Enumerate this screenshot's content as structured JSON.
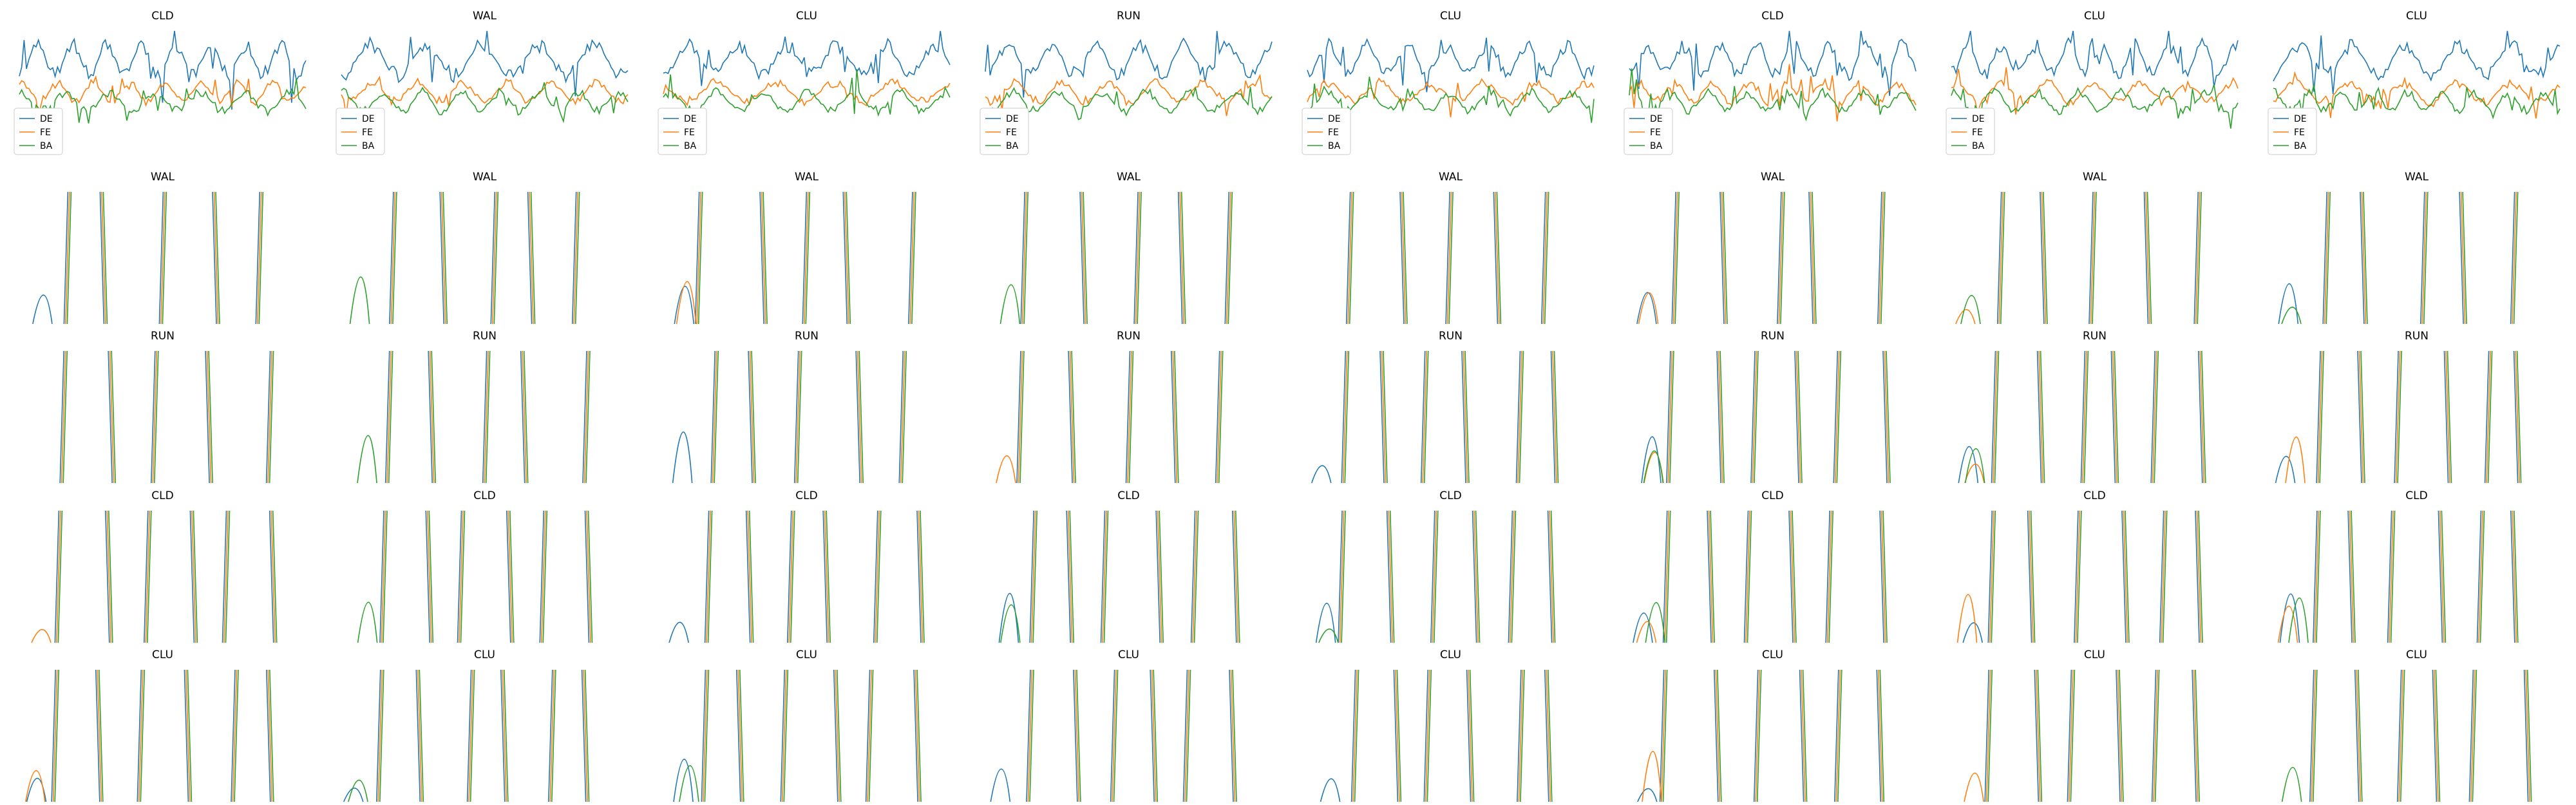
{
  "figure": {
    "legend_labels": [
      "DE",
      "FE",
      "BA"
    ],
    "colors": {
      "DE": "#1f77b4",
      "FE": "#ff7f0e",
      "BA": "#2ca02c"
    },
    "rows": [
      [
        "CLD",
        "WAL",
        "CLU",
        "RUN",
        "CLU",
        "CLD",
        "CLU",
        "CLU"
      ],
      [
        "WAL",
        "WAL",
        "WAL",
        "WAL",
        "WAL",
        "WAL",
        "WAL",
        "WAL"
      ],
      [
        "RUN",
        "RUN",
        "RUN",
        "RUN",
        "RUN",
        "RUN",
        "RUN",
        "RUN"
      ],
      [
        "CLD",
        "CLD",
        "CLD",
        "CLD",
        "CLD",
        "CLD",
        "CLD",
        "CLD"
      ],
      [
        "CLU",
        "CLU",
        "CLU",
        "CLU",
        "CLU",
        "CLU",
        "CLU",
        "CLU"
      ]
    ]
  },
  "chart_data": {
    "type": "line",
    "layout": "grid of small-multiple line plots, 5 rows x 8 columns; axes hidden",
    "series_names": [
      "DE",
      "FE",
      "BA"
    ],
    "legend": {
      "present_in_row": 1,
      "placement": "lower-left"
    },
    "grid": false,
    "note_values": "no axes or tick labels are shown; only titles and legend text are readable"
  }
}
